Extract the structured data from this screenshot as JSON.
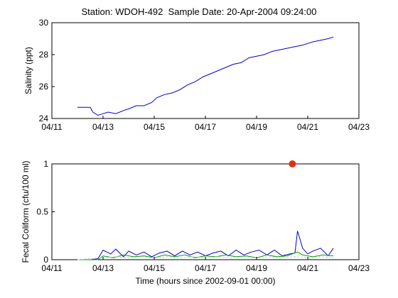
{
  "title": "Station: WDOH-492  Sample Date: 20-Apr-2004 09:24:00",
  "colors": {
    "salinity_line": "#0000cc",
    "fecal_blue": "#0000cc",
    "fecal_green": "#00a000",
    "fecal_dashed": "#c8c8c8",
    "sample_marker": "#e03010",
    "axes": "#000000",
    "background": "#ffffff"
  },
  "chart_data": [
    {
      "type": "line",
      "title": "",
      "xlabel": "",
      "ylabel": "Salinity (ppt)",
      "x_unit": "date (Apr 2004)",
      "xlim": [
        11,
        23
      ],
      "ylim": [
        24,
        30
      ],
      "x_ticks": [
        11,
        13,
        15,
        17,
        19,
        21,
        23
      ],
      "x_tick_labels": [
        "04/11",
        "04/13",
        "04/15",
        "04/17",
        "04/19",
        "04/21",
        "04/23"
      ],
      "y_ticks": [
        24,
        26,
        28,
        30
      ],
      "y_tick_labels": [
        "24",
        "26",
        "28",
        "30"
      ],
      "grid": false,
      "series": [
        {
          "color": "#0000cc",
          "x": [
            12.0,
            12.5,
            12.6,
            12.8,
            13.0,
            13.2,
            13.5,
            13.8,
            14.0,
            14.3,
            14.6,
            14.9,
            15.1,
            15.4,
            15.7,
            16.0,
            16.3,
            16.6,
            16.9,
            17.2,
            17.5,
            17.8,
            18.1,
            18.4,
            18.7,
            19.0,
            19.3,
            19.6,
            19.9,
            20.2,
            20.5,
            20.8,
            21.0,
            21.2,
            21.5,
            21.8,
            22.0
          ],
          "y": [
            24.7,
            24.7,
            24.4,
            24.2,
            24.3,
            24.4,
            24.3,
            24.5,
            24.6,
            24.8,
            24.8,
            25.0,
            25.3,
            25.5,
            25.6,
            25.8,
            26.1,
            26.3,
            26.6,
            26.8,
            27.0,
            27.2,
            27.4,
            27.5,
            27.8,
            27.9,
            28.0,
            28.2,
            28.3,
            28.4,
            28.5,
            28.6,
            28.7,
            28.8,
            28.9,
            29.0,
            29.1
          ]
        }
      ]
    },
    {
      "type": "line",
      "title": "",
      "xlabel": "Time (hours since 2002-09-01 00:00)",
      "ylabel": "Fecal Coliform (cfu/100 ml)",
      "x_unit": "date (Apr 2004)",
      "xlim": [
        11,
        23
      ],
      "ylim": [
        0,
        1
      ],
      "x_ticks": [
        11,
        13,
        15,
        17,
        19,
        21,
        23
      ],
      "x_tick_labels": [
        "04/11",
        "04/13",
        "04/15",
        "04/17",
        "04/19",
        "04/21",
        "04/23"
      ],
      "y_ticks": [
        0,
        0.5,
        1
      ],
      "y_tick_labels": [
        "0",
        "0.5",
        "1"
      ],
      "grid": false,
      "series": [
        {
          "color": "#0000cc",
          "x": [
            12.0,
            12.5,
            12.8,
            13.0,
            13.3,
            13.5,
            13.8,
            14.0,
            14.3,
            14.6,
            14.9,
            15.2,
            15.5,
            15.8,
            16.1,
            16.4,
            16.7,
            17.0,
            17.3,
            17.6,
            17.9,
            18.2,
            18.5,
            18.8,
            19.1,
            19.4,
            19.7,
            20.0,
            20.3,
            20.5,
            20.6,
            20.8,
            21.0,
            21.2,
            21.5,
            21.8,
            22.0
          ],
          "y": [
            0.0,
            0.0,
            0.01,
            0.1,
            0.06,
            0.11,
            0.03,
            0.09,
            0.05,
            0.08,
            0.03,
            0.07,
            0.09,
            0.04,
            0.09,
            0.05,
            0.08,
            0.04,
            0.07,
            0.09,
            0.04,
            0.1,
            0.05,
            0.08,
            0.1,
            0.05,
            0.1,
            0.04,
            0.06,
            0.07,
            0.3,
            0.12,
            0.06,
            0.09,
            0.12,
            0.04,
            0.12
          ]
        },
        {
          "color": "#00a000",
          "x": [
            12.0,
            12.8,
            13.0,
            13.4,
            13.8,
            14.2,
            14.6,
            15.0,
            15.4,
            15.8,
            16.2,
            16.6,
            17.0,
            17.4,
            17.8,
            18.2,
            18.6,
            19.0,
            19.4,
            19.8,
            20.2,
            20.6,
            20.8,
            21.2,
            21.6,
            22.0
          ],
          "y": [
            0.0,
            0.0,
            0.04,
            0.02,
            0.05,
            0.03,
            0.04,
            0.02,
            0.05,
            0.03,
            0.05,
            0.02,
            0.04,
            0.03,
            0.05,
            0.03,
            0.04,
            0.02,
            0.05,
            0.03,
            0.04,
            0.08,
            0.05,
            0.03,
            0.05,
            0.04
          ]
        },
        {
          "color": "#c8c8c8",
          "dashed": true,
          "x": [
            12.0,
            13.0,
            13.5,
            14.0,
            14.5,
            15.0,
            15.5,
            16.0,
            16.5,
            17.0,
            17.5,
            18.0,
            18.5,
            19.0,
            19.5,
            20.0,
            20.5,
            21.0,
            21.5,
            22.0
          ],
          "y": [
            0.0,
            0.02,
            0.03,
            0.02,
            0.03,
            0.02,
            0.03,
            0.02,
            0.03,
            0.02,
            0.03,
            0.02,
            0.03,
            0.02,
            0.03,
            0.02,
            0.03,
            0.02,
            0.03,
            0.02
          ]
        }
      ],
      "points": [
        {
          "x": 20.4,
          "y": 1.0,
          "color": "#e03010"
        }
      ]
    }
  ]
}
